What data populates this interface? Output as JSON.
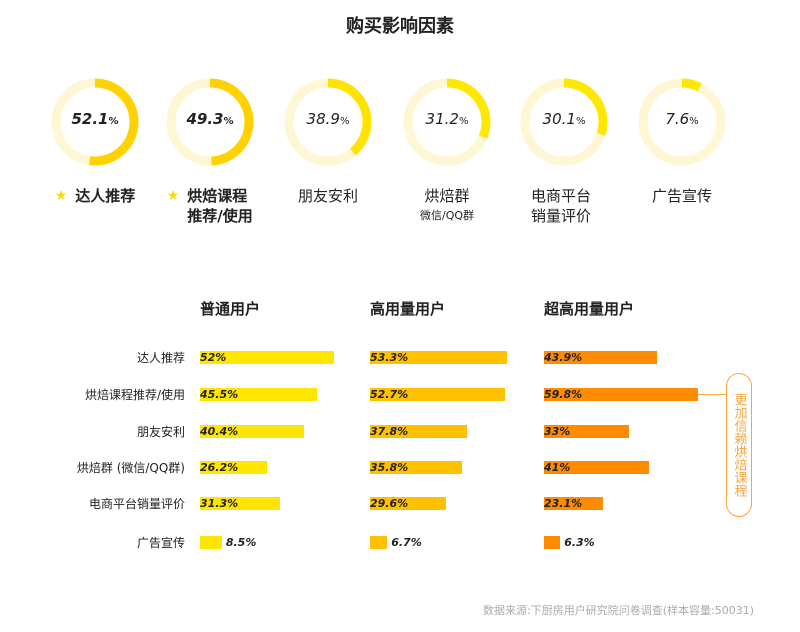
{
  "title": "购买影响因素",
  "donuts": [
    {
      "value": 52.1,
      "display": "52.1",
      "label": "达人推荐",
      "sub": "",
      "bold": true,
      "star": true,
      "color": "#ffd200"
    },
    {
      "value": 49.3,
      "display": "49.3",
      "label": "烘焙课程推荐/使用",
      "sub": "",
      "bold": true,
      "star": true,
      "color": "#ffd200"
    },
    {
      "value": 38.9,
      "display": "38.9",
      "label": "朋友安利",
      "sub": "",
      "bold": false,
      "star": false,
      "color": "#ffe400"
    },
    {
      "value": 31.2,
      "display": "31.2",
      "label": "烘焙群",
      "sub": "微信/QQ群",
      "bold": false,
      "star": false,
      "color": "#ffe800"
    },
    {
      "value": 30.1,
      "display": "30.1",
      "label": "电商平台销量评价",
      "sub": "",
      "bold": false,
      "star": false,
      "color": "#ffe800"
    },
    {
      "value": 7.6,
      "display": "7.6",
      "label": "广告宣传",
      "sub": "",
      "bold": false,
      "star": false,
      "color": "#ffe800"
    }
  ],
  "percent_sign": "%",
  "star_icon": "★",
  "chart_data": {
    "type": "bar",
    "categories": [
      "达人推荐",
      "烘焙课程推荐/使用",
      "朋友安利",
      "烘焙群 (微信/QQ群)",
      "电商平台销量评价",
      "广告宣传"
    ],
    "series": [
      {
        "name": "普通用户",
        "color": "#ffe600",
        "values": [
          52,
          45.5,
          40.4,
          26.2,
          31.3,
          8.5
        ],
        "labels": [
          "52%",
          "45.5%",
          "40.4%",
          "26.2%",
          "31.3%",
          "8.5%"
        ]
      },
      {
        "name": "高用量用户",
        "color": "#ffc000",
        "values": [
          53.3,
          52.7,
          37.8,
          35.8,
          29.6,
          6.7
        ],
        "labels": [
          "53.3%",
          "52.7%",
          "37.8%",
          "35.8%",
          "29.6%",
          "6.7%"
        ]
      },
      {
        "name": "超高用量用户",
        "color": "#ff8c00",
        "values": [
          43.9,
          59.8,
          33,
          41,
          23.1,
          6.3
        ],
        "labels": [
          "43.9%",
          "59.8%",
          "33%",
          "41%",
          "23.1%",
          "6.3%"
        ]
      }
    ]
  },
  "note": "更加信赖烘焙课程",
  "source": "数据来源:下厨房用户研究院问卷调查(样本容量:50031)"
}
